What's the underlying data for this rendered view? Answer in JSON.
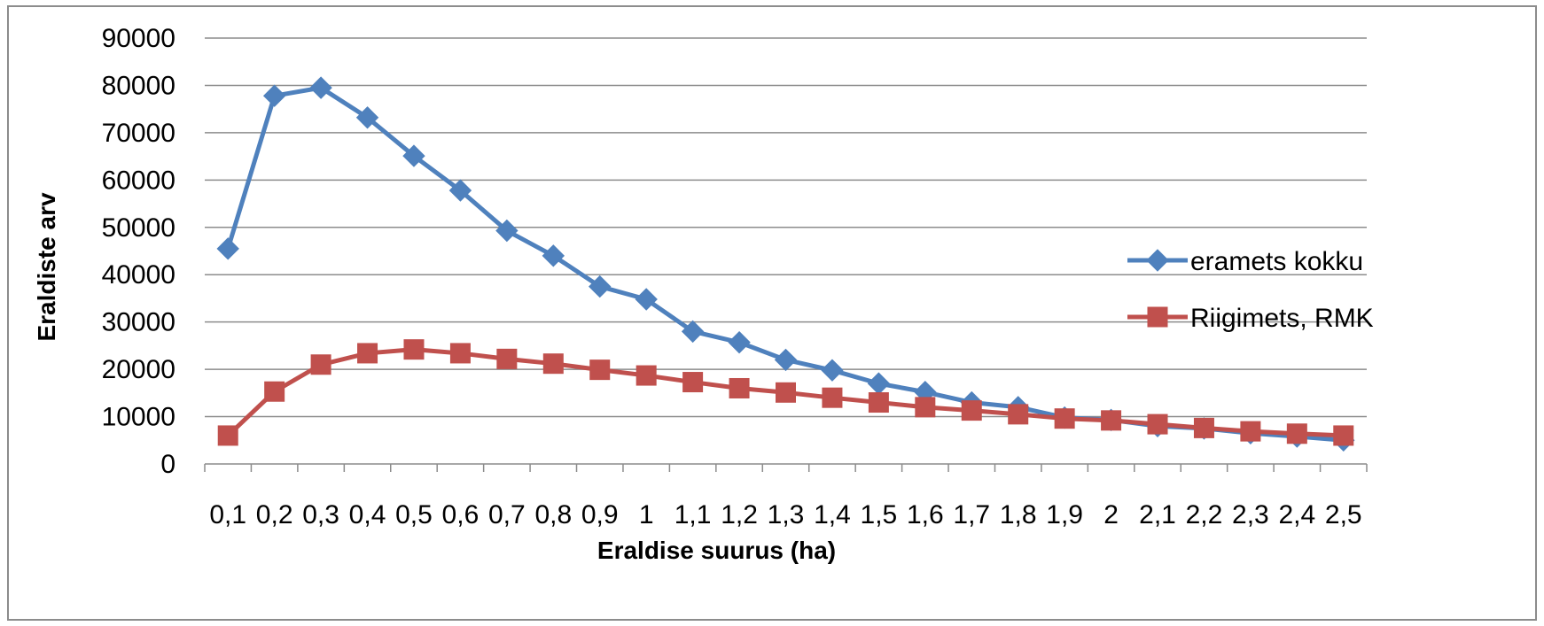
{
  "chart_data": {
    "type": "line",
    "title": "",
    "xlabel": "Eraldise suurus (ha)",
    "ylabel": "Eraldiste arv",
    "categories": [
      "0,1",
      "0,2",
      "0,3",
      "0,4",
      "0,5",
      "0,6",
      "0,7",
      "0,8",
      "0,9",
      "1",
      "1,1",
      "1,2",
      "1,3",
      "1,4",
      "1,5",
      "1,6",
      "1,7",
      "1,8",
      "1,9",
      "2",
      "2,1",
      "2,2",
      "2,3",
      "2,4",
      "2,5"
    ],
    "ylim": [
      0,
      90000
    ],
    "yticks": [
      0,
      10000,
      20000,
      30000,
      40000,
      50000,
      60000,
      70000,
      80000,
      90000
    ],
    "ytick_labels": [
      "0",
      "10000",
      "20000",
      "30000",
      "40000",
      "50000",
      "60000",
      "70000",
      "80000",
      "90000"
    ],
    "grid": true,
    "legend_position": "right",
    "series": [
      {
        "name": "eramets kokku",
        "color": "#4f81bd",
        "marker": "diamond",
        "values": [
          45500,
          77800,
          79500,
          73200,
          65100,
          57800,
          49300,
          44000,
          37500,
          34800,
          28000,
          25700,
          22000,
          19800,
          17000,
          15200,
          13000,
          12000,
          9800,
          9300,
          8000,
          7500,
          6500,
          5800,
          5000
        ]
      },
      {
        "name": "Riigimets, RMK",
        "color": "#c0504d",
        "marker": "square",
        "values": [
          6000,
          15300,
          21000,
          23400,
          24200,
          23400,
          22200,
          21200,
          19900,
          18700,
          17300,
          16000,
          15100,
          14000,
          13000,
          12000,
          11300,
          10500,
          9600,
          9200,
          8400,
          7600,
          6900,
          6400,
          6000
        ]
      }
    ]
  }
}
